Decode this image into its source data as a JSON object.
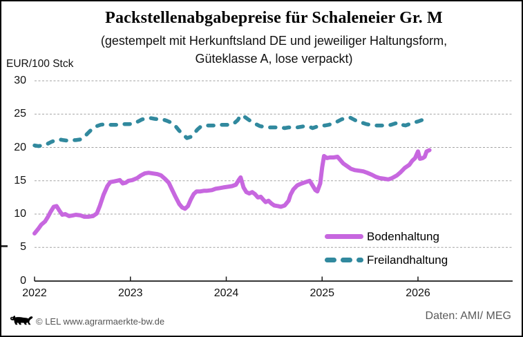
{
  "footer": {
    "copyright": "© LEL www.agrarmaerkte-bw.de",
    "source": "Daten: AMI/ MEG"
  },
  "colors": {
    "bodenhaltung": "#C767DF",
    "freilandhaltung": "#31899E",
    "gridline": "#A2A2A2",
    "axis": "#1A1A1A",
    "footer_text": "#595959"
  },
  "chart_data": {
    "type": "line",
    "title": "Packstellenabgabepreise für Schaleneier Gr. M",
    "subtitle_line1": "(gestempelt mit Herkunftsland DE und jeweiliger Haltungsform,",
    "subtitle_line2": "Güteklasse A, lose verpackt)",
    "ylabel": "EUR/100 Stck",
    "xlabel": "",
    "ylim": [
      0,
      30
    ],
    "xlim": [
      2022,
      2027
    ],
    "yticks": [
      0,
      5,
      10,
      15,
      20,
      25,
      30
    ],
    "xticks": [
      2022,
      2023,
      2024,
      2025,
      2026
    ],
    "grid": "horizontal-dashed",
    "legend_position": "inside-lower-right",
    "series": [
      {
        "name": "Bodenhaltung",
        "color": "#C767DF",
        "style": "solid",
        "x": [
          2022.0,
          2022.04,
          2022.07,
          2022.11,
          2022.14,
          2022.17,
          2022.2,
          2022.23,
          2022.26,
          2022.29,
          2022.32,
          2022.36,
          2022.4,
          2022.43,
          2022.48,
          2022.52,
          2022.56,
          2022.61,
          2022.65,
          2022.68,
          2022.72,
          2022.76,
          2022.79,
          2022.83,
          2022.86,
          2022.89,
          2022.92,
          2022.95,
          2022.98,
          2023.02,
          2023.07,
          2023.11,
          2023.15,
          2023.19,
          2023.23,
          2023.28,
          2023.32,
          2023.36,
          2023.4,
          2023.43,
          2023.47,
          2023.51,
          2023.54,
          2023.57,
          2023.6,
          2023.63,
          2023.66,
          2023.69,
          2023.73,
          2023.77,
          2023.8,
          2023.85,
          2023.89,
          2023.93,
          2023.97,
          2024.02,
          2024.06,
          2024.1,
          2024.13,
          2024.15,
          2024.18,
          2024.21,
          2024.24,
          2024.27,
          2024.3,
          2024.33,
          2024.36,
          2024.39,
          2024.41,
          2024.44,
          2024.47,
          2024.5,
          2024.54,
          2024.57,
          2024.61,
          2024.65,
          2024.67,
          2024.7,
          2024.74,
          2024.77,
          2024.81,
          2024.85,
          2024.87,
          2024.9,
          2024.93,
          2024.95,
          2024.98,
          2025.0,
          2025.02,
          2025.05,
          2025.08,
          2025.12,
          2025.16,
          2025.19,
          2025.22,
          2025.26,
          2025.3,
          2025.34,
          2025.39,
          2025.43,
          2025.47,
          2025.52,
          2025.56,
          2025.6,
          2025.65,
          2025.69,
          2025.73,
          2025.78,
          2025.82,
          2025.86,
          2025.91,
          2025.94,
          2025.97,
          2026.0,
          2026.02,
          2026.05,
          2026.07,
          2026.09,
          2026.12
        ],
        "y": [
          7.1,
          7.8,
          8.4,
          8.9,
          9.6,
          10.4,
          11.1,
          11.2,
          10.5,
          9.9,
          10.0,
          9.7,
          9.8,
          9.9,
          9.8,
          9.6,
          9.6,
          9.7,
          10.1,
          11.2,
          12.9,
          14.2,
          14.8,
          14.9,
          15.0,
          15.1,
          14.6,
          14.7,
          15.0,
          15.1,
          15.4,
          15.8,
          16.1,
          16.2,
          16.1,
          16.0,
          15.8,
          15.3,
          14.7,
          13.8,
          12.6,
          11.5,
          11.0,
          10.8,
          11.2,
          12.2,
          13.0,
          13.4,
          13.4,
          13.5,
          13.5,
          13.6,
          13.8,
          13.9,
          14.0,
          14.1,
          14.2,
          14.4,
          15.1,
          15.5,
          14.0,
          13.3,
          13.1,
          13.3,
          13.0,
          12.5,
          12.6,
          12.1,
          11.8,
          12.0,
          11.6,
          11.3,
          11.2,
          11.1,
          11.3,
          12.0,
          12.9,
          13.7,
          14.3,
          14.5,
          14.7,
          14.9,
          15.0,
          14.3,
          13.6,
          13.4,
          14.6,
          17.0,
          18.7,
          18.4,
          18.5,
          18.5,
          18.6,
          18.1,
          17.6,
          17.2,
          16.8,
          16.6,
          16.5,
          16.4,
          16.2,
          15.9,
          15.6,
          15.4,
          15.3,
          15.2,
          15.4,
          15.8,
          16.3,
          16.9,
          17.4,
          18.0,
          18.4,
          19.4,
          18.3,
          18.4,
          18.6,
          19.4,
          19.6
        ]
      },
      {
        "name": "Freilandhaltung",
        "color": "#31899E",
        "style": "dashed",
        "x": [
          2022.0,
          2022.04,
          2022.09,
          2022.13,
          2022.17,
          2022.22,
          2022.26,
          2022.3,
          2022.35,
          2022.39,
          2022.43,
          2022.48,
          2022.52,
          2022.56,
          2022.61,
          2022.65,
          2022.69,
          2022.74,
          2022.78,
          2022.82,
          2022.86,
          2022.91,
          2022.95,
          2022.99,
          2023.04,
          2023.08,
          2023.12,
          2023.17,
          2023.21,
          2023.25,
          2023.3,
          2023.34,
          2023.38,
          2023.43,
          2023.47,
          2023.51,
          2023.56,
          2023.59,
          2023.63,
          2023.66,
          2023.7,
          2023.74,
          2023.78,
          2023.82,
          2023.87,
          2023.91,
          2023.95,
          2024.0,
          2024.04,
          2024.08,
          2024.12,
          2024.15,
          2024.19,
          2024.23,
          2024.26,
          2024.31,
          2024.35,
          2024.39,
          2024.44,
          2024.48,
          2024.52,
          2024.57,
          2024.61,
          2024.65,
          2024.7,
          2024.74,
          2024.78,
          2024.82,
          2024.87,
          2024.9,
          2024.94,
          2024.98,
          2025.03,
          2025.07,
          2025.11,
          2025.16,
          2025.2,
          2025.24,
          2025.29,
          2025.33,
          2025.37,
          2025.42,
          2025.46,
          2025.5,
          2025.54,
          2025.59,
          2025.63,
          2025.68,
          2025.72,
          2025.76,
          2025.8,
          2025.83,
          2025.87,
          2025.91,
          2025.95,
          2026.0,
          2026.04,
          2026.08,
          2026.12
        ],
        "y": [
          20.3,
          20.2,
          20.3,
          20.5,
          20.8,
          21.1,
          21.2,
          21.1,
          21.0,
          21.1,
          21.1,
          21.2,
          21.6,
          22.2,
          22.9,
          23.2,
          23.4,
          23.5,
          23.4,
          23.4,
          23.4,
          23.5,
          23.5,
          23.5,
          23.6,
          23.9,
          24.2,
          24.4,
          24.4,
          24.3,
          24.2,
          24.2,
          24.0,
          23.7,
          23.2,
          22.5,
          21.8,
          21.4,
          21.6,
          22.0,
          22.7,
          23.2,
          23.3,
          23.3,
          23.3,
          23.3,
          23.4,
          23.4,
          23.4,
          23.6,
          24.1,
          24.8,
          24.6,
          24.2,
          23.9,
          23.5,
          23.2,
          23.1,
          23.0,
          23.0,
          23.0,
          23.0,
          22.9,
          23.0,
          23.0,
          23.0,
          23.1,
          23.2,
          23.1,
          22.9,
          23.1,
          23.3,
          23.3,
          23.4,
          23.6,
          23.9,
          24.2,
          24.4,
          24.5,
          24.2,
          23.9,
          23.7,
          23.5,
          23.4,
          23.3,
          23.3,
          23.3,
          23.3,
          23.4,
          23.6,
          23.7,
          23.4,
          23.3,
          23.5,
          23.7,
          23.9,
          24.1,
          24.0,
          24.0
        ]
      }
    ]
  }
}
